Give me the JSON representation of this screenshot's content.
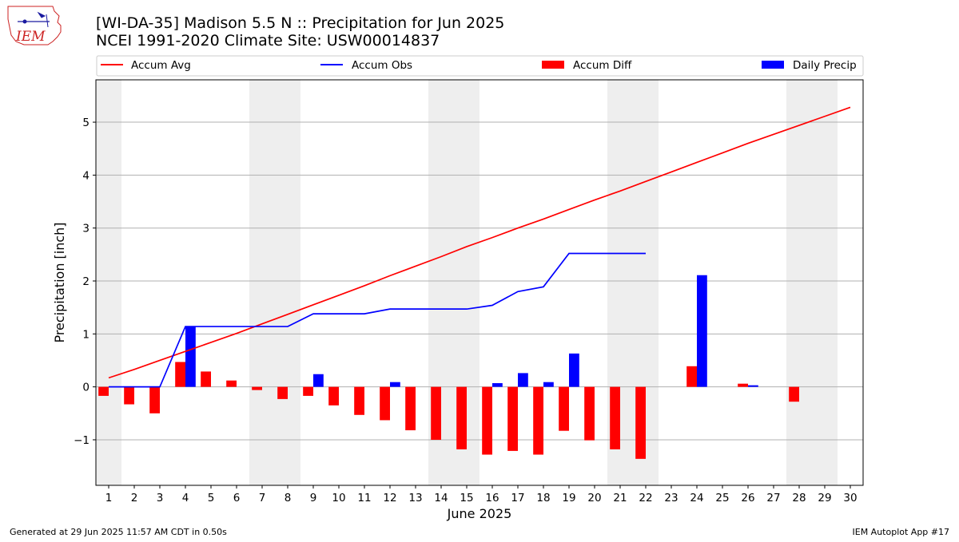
{
  "logo": {
    "text": "IEM"
  },
  "header": {
    "title_line1": "[WI-DA-35] Madison 5.5 N :: Precipitation for Jun 2025",
    "title_line2": "NCEI 1991-2020 Climate Site: USW00014837"
  },
  "footer": {
    "left": "Generated at 29 Jun 2025 11:57 AM CDT in 0.50s",
    "right": "IEM Autoplot App #17"
  },
  "chart_data": {
    "type": "bar",
    "title": "[WI-DA-35] Madison 5.5 N :: Precipitation for Jun 2025",
    "subtitle": "NCEI 1991-2020 Climate Site: USW00014837",
    "xlabel": "June 2025",
    "ylabel": "Precipitation [inch]",
    "xlim": [
      0.5,
      30.5
    ],
    "ylim": [
      -1.86,
      5.8
    ],
    "x_ticks": [
      1,
      2,
      3,
      4,
      5,
      6,
      7,
      8,
      9,
      10,
      11,
      12,
      13,
      14,
      15,
      16,
      17,
      18,
      19,
      20,
      21,
      22,
      23,
      24,
      25,
      26,
      27,
      28,
      29,
      30
    ],
    "y_ticks": [
      -1,
      0,
      1,
      2,
      3,
      4,
      5
    ],
    "grid": "horizontal",
    "legend_position": "top, above plot",
    "weekend_shading": [
      [
        0.5,
        1.5
      ],
      [
        6.5,
        8.5
      ],
      [
        13.5,
        15.5
      ],
      [
        20.5,
        22.5
      ],
      [
        27.5,
        29.5
      ]
    ],
    "series": [
      {
        "name": "Accum Avg",
        "kind": "line",
        "color": "#ff0000",
        "x": [
          1,
          2,
          3,
          4,
          5,
          6,
          7,
          8,
          9,
          10,
          11,
          12,
          13,
          14,
          15,
          16,
          17,
          18,
          19,
          20,
          21,
          22,
          23,
          24,
          25,
          26,
          27,
          28,
          29,
          30
        ],
        "values": [
          0.17,
          0.33,
          0.5,
          0.67,
          0.84,
          1.01,
          1.19,
          1.37,
          1.55,
          1.73,
          1.91,
          2.1,
          2.28,
          2.46,
          2.65,
          2.82,
          3.0,
          3.17,
          3.35,
          3.53,
          3.7,
          3.88,
          4.06,
          4.24,
          4.42,
          4.6,
          4.77,
          4.94,
          5.11,
          5.28
        ]
      },
      {
        "name": "Accum Obs",
        "kind": "line",
        "color": "#0000ff",
        "x": [
          1,
          2,
          3,
          4,
          5,
          6,
          7,
          8,
          9,
          10,
          11,
          12,
          13,
          14,
          15,
          16,
          17,
          18,
          19,
          20,
          21,
          22
        ],
        "values": [
          0,
          0,
          0,
          1.14,
          1.14,
          1.14,
          1.14,
          1.14,
          1.38,
          1.38,
          1.38,
          1.47,
          1.47,
          1.47,
          1.47,
          1.54,
          1.8,
          1.89,
          2.52,
          2.52,
          2.52,
          2.52
        ]
      },
      {
        "name": "Accum Diff",
        "kind": "bar",
        "color": "#ff0000",
        "x": [
          1,
          2,
          3,
          4,
          5,
          6,
          7,
          8,
          9,
          10,
          11,
          12,
          13,
          14,
          15,
          16,
          17,
          18,
          19,
          20,
          21,
          22,
          24,
          26,
          28
        ],
        "values": [
          -0.17,
          -0.33,
          -0.5,
          0.47,
          0.29,
          0.12,
          -0.06,
          -0.23,
          -0.17,
          -0.35,
          -0.53,
          -0.63,
          -0.82,
          -1.0,
          -1.18,
          -1.28,
          -1.21,
          -1.28,
          -0.83,
          -1.01,
          -1.18,
          -1.36,
          0.39,
          0.06,
          -0.28
        ]
      },
      {
        "name": "Daily Precip",
        "kind": "bar",
        "color": "#0000ff",
        "x": [
          4,
          9,
          12,
          16,
          17,
          18,
          19,
          24,
          26
        ],
        "values": [
          1.14,
          0.24,
          0.09,
          0.07,
          0.26,
          0.09,
          0.63,
          2.11,
          0.03
        ]
      }
    ]
  }
}
